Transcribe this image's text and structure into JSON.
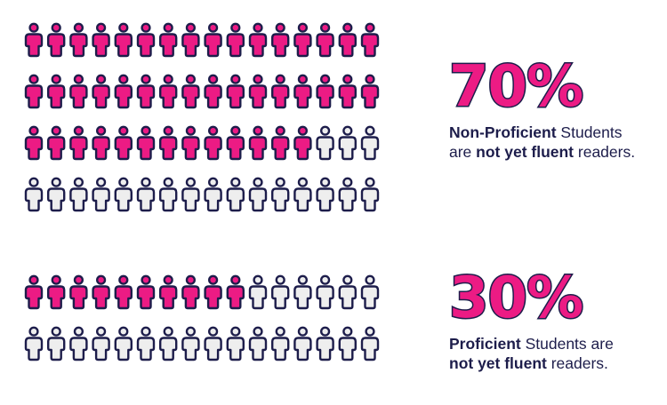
{
  "colors": {
    "filled": "#ec1b84",
    "empty": "#eeeeee",
    "outline": "#1d1d4b",
    "percent_fill": "#ec1b84"
  },
  "chart_data": [
    {
      "type": "pictogram",
      "icon": "person-icon",
      "columns": 16,
      "rows": 4,
      "total_icons": 64,
      "filled_icons": 45,
      "percent_label": "70%",
      "value": 70,
      "caption": {
        "bold_1": "Non-Proficient",
        "text_1": " Students",
        "text_2": "are ",
        "bold_2": "not yet fluent",
        "text_3": " readers."
      }
    },
    {
      "type": "pictogram",
      "icon": "person-icon",
      "columns": 16,
      "rows": 2,
      "total_icons": 32,
      "filled_icons": 10,
      "percent_label": "30%",
      "value": 30,
      "caption": {
        "bold_1": "Proficient",
        "text_1": " Students are",
        "text_2": "",
        "bold_2": "not yet fluent",
        "text_3": " readers."
      }
    }
  ]
}
